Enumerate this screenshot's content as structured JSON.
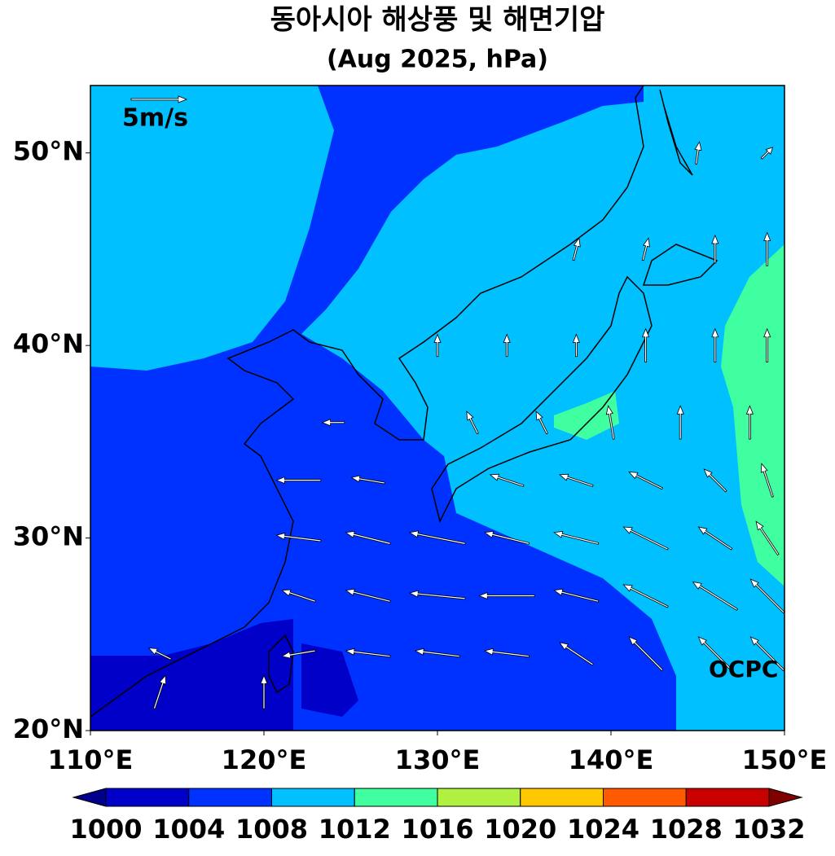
{
  "chart_data": {
    "type": "contour-map",
    "title": "동아시아 해상풍 및 해면기압",
    "subtitle": "(Aug 2025, hPa)",
    "xlim": [
      110,
      150
    ],
    "ylim": [
      20,
      53.5
    ],
    "xticks": [
      {
        "value": 110,
        "label": "110°E"
      },
      {
        "value": 120,
        "label": "120°E"
      },
      {
        "value": 130,
        "label": "130°E"
      },
      {
        "value": 140,
        "label": "140°E"
      },
      {
        "value": 150,
        "label": "150°E"
      }
    ],
    "yticks": [
      {
        "value": 20,
        "label": "20°N"
      },
      {
        "value": 30,
        "label": "30°N"
      },
      {
        "value": 40,
        "label": "40°N"
      },
      {
        "value": 50,
        "label": "50°N"
      }
    ],
    "wind_key": {
      "value": 5,
      "label": "5m/s"
    },
    "watermark": "OCPC",
    "colorbar": {
      "levels": [
        1000,
        1004,
        1008,
        1012,
        1016,
        1020,
        1024,
        1028,
        1032
      ],
      "colors": [
        "#0000c8",
        "#0032ff",
        "#00c0ff",
        "#40ffa0",
        "#b0f040",
        "#ffc800",
        "#ff5a00",
        "#c80000"
      ],
      "under_color": "#00008c",
      "over_color": "#800000"
    },
    "wind": [
      {
        "lon": 114,
        "lat": 22,
        "u": 1,
        "v": 3
      },
      {
        "lon": 120,
        "lat": 22,
        "u": 0,
        "v": 3
      },
      {
        "lon": 114,
        "lat": 24,
        "u": -2,
        "v": 1
      },
      {
        "lon": 122,
        "lat": 24,
        "u": -3,
        "v": -0.5
      },
      {
        "lon": 126,
        "lat": 24,
        "u": -4,
        "v": 0.5
      },
      {
        "lon": 130,
        "lat": 24,
        "u": -4,
        "v": 0.5
      },
      {
        "lon": 134,
        "lat": 24,
        "u": -4,
        "v": 0.5
      },
      {
        "lon": 138,
        "lat": 24,
        "u": -3,
        "v": 2
      },
      {
        "lon": 142,
        "lat": 24,
        "u": -3,
        "v": 3
      },
      {
        "lon": 146,
        "lat": 24,
        "u": -3,
        "v": 3
      },
      {
        "lon": 149,
        "lat": 24,
        "u": -3,
        "v": 3
      },
      {
        "lon": 122,
        "lat": 27,
        "u": -3,
        "v": 1
      },
      {
        "lon": 126,
        "lat": 27,
        "u": -4,
        "v": 1
      },
      {
        "lon": 130,
        "lat": 27,
        "u": -5,
        "v": 0.5
      },
      {
        "lon": 134,
        "lat": 27,
        "u": -5,
        "v": 0
      },
      {
        "lon": 138,
        "lat": 27,
        "u": -4,
        "v": 1
      },
      {
        "lon": 142,
        "lat": 27,
        "u": -4,
        "v": 2
      },
      {
        "lon": 146,
        "lat": 27,
        "u": -4,
        "v": 2.5
      },
      {
        "lon": 149,
        "lat": 27,
        "u": -3,
        "v": 3
      },
      {
        "lon": 122,
        "lat": 30,
        "u": -4,
        "v": 0.5
      },
      {
        "lon": 126,
        "lat": 30,
        "u": -4,
        "v": 1
      },
      {
        "lon": 130,
        "lat": 30,
        "u": -5,
        "v": 1
      },
      {
        "lon": 134,
        "lat": 30,
        "u": -4,
        "v": 1
      },
      {
        "lon": 138,
        "lat": 30,
        "u": -4,
        "v": 1
      },
      {
        "lon": 142,
        "lat": 30,
        "u": -4,
        "v": 2
      },
      {
        "lon": 146,
        "lat": 30,
        "u": -3,
        "v": 2
      },
      {
        "lon": 149,
        "lat": 30,
        "u": -2,
        "v": 3
      },
      {
        "lon": 122,
        "lat": 33,
        "u": -4,
        "v": 0
      },
      {
        "lon": 126,
        "lat": 33,
        "u": -3,
        "v": 0.5
      },
      {
        "lon": 134,
        "lat": 33,
        "u": -3,
        "v": 1
      },
      {
        "lon": 138,
        "lat": 33,
        "u": -3,
        "v": 1
      },
      {
        "lon": 142,
        "lat": 33,
        "u": -3,
        "v": 1.5
      },
      {
        "lon": 146,
        "lat": 33,
        "u": -2,
        "v": 2
      },
      {
        "lon": 149,
        "lat": 33,
        "u": -1,
        "v": 3
      },
      {
        "lon": 124,
        "lat": 36,
        "u": -2,
        "v": 0
      },
      {
        "lon": 132,
        "lat": 36,
        "u": -1,
        "v": 2
      },
      {
        "lon": 136,
        "lat": 36,
        "u": -1,
        "v": 2
      },
      {
        "lon": 140,
        "lat": 36,
        "u": -0.5,
        "v": 3
      },
      {
        "lon": 144,
        "lat": 36,
        "u": 0,
        "v": 3
      },
      {
        "lon": 148,
        "lat": 36,
        "u": 0,
        "v": 3
      },
      {
        "lon": 130,
        "lat": 40,
        "u": 0,
        "v": 2
      },
      {
        "lon": 134,
        "lat": 40,
        "u": 0,
        "v": 2
      },
      {
        "lon": 138,
        "lat": 40,
        "u": 0,
        "v": 2
      },
      {
        "lon": 142,
        "lat": 40,
        "u": 0,
        "v": 3
      },
      {
        "lon": 146,
        "lat": 40,
        "u": 0,
        "v": 3
      },
      {
        "lon": 149,
        "lat": 40,
        "u": 0,
        "v": 3
      },
      {
        "lon": 138,
        "lat": 45,
        "u": 0.5,
        "v": 2
      },
      {
        "lon": 142,
        "lat": 45,
        "u": 0.5,
        "v": 2
      },
      {
        "lon": 146,
        "lat": 45,
        "u": 0,
        "v": 2.5
      },
      {
        "lon": 149,
        "lat": 45,
        "u": 0,
        "v": 3
      },
      {
        "lon": 145,
        "lat": 50,
        "u": 0.3,
        "v": 2
      },
      {
        "lon": 149,
        "lat": 50,
        "u": 1,
        "v": 1
      }
    ]
  }
}
